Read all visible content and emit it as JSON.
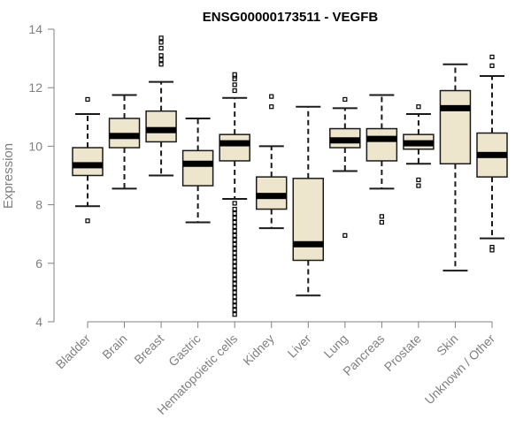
{
  "chart_data": {
    "type": "boxplot",
    "title": "ENSG00000173511 - VEGFB",
    "xlabel": "",
    "ylabel": "Expression",
    "ylim": [
      4,
      14
    ],
    "yticks": [
      4,
      6,
      8,
      10,
      12,
      14
    ],
    "grid": false,
    "colors": {
      "box_fill": "#ede6cd",
      "box_stroke": "#1a1a1a",
      "axis": "#808080",
      "median": "#000000"
    },
    "categories": [
      "Bladder",
      "Brain",
      "Breast",
      "Gastric",
      "Hematopoietic cells",
      "Kidney",
      "Liver",
      "Lung",
      "Pancreas",
      "Prostate",
      "Skin",
      "Unknown / Other"
    ],
    "boxes": [
      {
        "name": "Bladder",
        "whisker_low": 7.95,
        "q1": 9.0,
        "median": 9.35,
        "q3": 9.95,
        "whisker_high": 11.1,
        "outliers": [
          11.6,
          7.45
        ]
      },
      {
        "name": "Brain",
        "whisker_low": 8.55,
        "q1": 9.95,
        "median": 10.35,
        "q3": 10.95,
        "whisker_high": 11.75,
        "outliers": []
      },
      {
        "name": "Breast",
        "whisker_low": 9.0,
        "q1": 10.15,
        "median": 10.55,
        "q3": 11.2,
        "whisker_high": 12.2,
        "outliers": [
          12.8,
          12.95,
          13.1,
          13.35,
          13.55,
          13.7
        ]
      },
      {
        "name": "Gastric",
        "whisker_low": 7.4,
        "q1": 8.65,
        "median": 9.4,
        "q3": 9.85,
        "whisker_high": 10.95,
        "outliers": []
      },
      {
        "name": "Hematopoietic cells",
        "whisker_low": 8.2,
        "q1": 9.5,
        "median": 10.1,
        "q3": 10.4,
        "whisker_high": 11.65,
        "outliers": [
          11.9,
          12.1,
          12.3,
          12.4,
          12.45,
          8.05,
          7.85,
          7.7,
          7.55,
          7.4,
          7.25,
          7.1,
          6.95,
          6.8,
          6.65,
          6.5,
          6.35,
          6.2,
          6.05,
          5.9,
          5.75,
          5.6,
          5.45,
          5.3,
          5.15,
          5.0,
          4.85,
          4.7,
          4.55,
          4.4,
          4.25
        ]
      },
      {
        "name": "Kidney",
        "whisker_low": 7.2,
        "q1": 7.85,
        "median": 8.3,
        "q3": 8.95,
        "whisker_high": 10.0,
        "outliers": [
          11.35,
          11.7
        ]
      },
      {
        "name": "Liver",
        "whisker_low": 4.9,
        "q1": 6.1,
        "median": 6.65,
        "q3": 8.9,
        "whisker_high": 11.35,
        "outliers": []
      },
      {
        "name": "Lung",
        "whisker_low": 9.15,
        "q1": 9.95,
        "median": 10.2,
        "q3": 10.6,
        "whisker_high": 11.3,
        "outliers": [
          11.6,
          6.95
        ]
      },
      {
        "name": "Pancreas",
        "whisker_low": 8.55,
        "q1": 9.5,
        "median": 10.25,
        "q3": 10.6,
        "whisker_high": 11.75,
        "outliers": [
          7.6,
          7.4
        ]
      },
      {
        "name": "Prostate",
        "whisker_low": 9.4,
        "q1": 9.9,
        "median": 10.1,
        "q3": 10.4,
        "whisker_high": 11.1,
        "outliers": [
          11.35,
          8.85,
          8.65
        ]
      },
      {
        "name": "Skin",
        "whisker_low": 5.75,
        "q1": 9.4,
        "median": 11.3,
        "q3": 11.9,
        "whisker_high": 12.8,
        "outliers": []
      },
      {
        "name": "Unknown / Other",
        "whisker_low": 6.85,
        "q1": 8.95,
        "median": 9.7,
        "q3": 10.45,
        "whisker_high": 12.4,
        "outliers": [
          13.05,
          12.75,
          6.55,
          6.45
        ]
      }
    ]
  }
}
